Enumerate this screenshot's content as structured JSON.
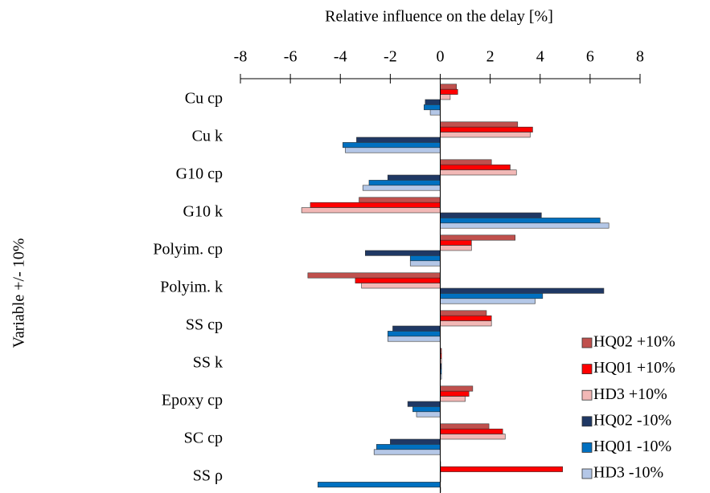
{
  "chart_data": {
    "type": "bar",
    "orientation": "horizontal",
    "x_label": "Relative influence on the delay [%]",
    "y_label": "Variable +/- 10%",
    "categories": [
      "Cu cp",
      "Cu k",
      "G10 cp",
      "G10 k",
      "Polyim. cp",
      "Polyim. k",
      "SS cp",
      "SS k",
      "Epoxy cp",
      "SC cp",
      "SS ρ"
    ],
    "series": [
      {
        "name": "HQ02 +10%",
        "color": "#c0504d",
        "values": [
          0.65,
          3.1,
          2.05,
          -3.25,
          3.0,
          -5.3,
          1.85,
          0.05,
          1.3,
          1.95,
          0
        ]
      },
      {
        "name": "HQ01 +10%",
        "color": "#ff0000",
        "values": [
          0.7,
          3.7,
          2.8,
          -5.2,
          1.25,
          -3.4,
          2.05,
          0.05,
          1.15,
          2.5,
          4.9
        ]
      },
      {
        "name": "HD3 +10%",
        "color": "#f2b8b6",
        "values": [
          0.4,
          3.6,
          3.05,
          -5.55,
          1.25,
          -3.15,
          2.05,
          0.05,
          1.0,
          2.6,
          0
        ]
      },
      {
        "name": "HQ02 -10%",
        "color": "#1f3864",
        "values": [
          -0.6,
          -3.35,
          -2.1,
          4.05,
          -3.0,
          6.55,
          -1.9,
          0.05,
          -1.3,
          -2.0,
          0
        ]
      },
      {
        "name": "HQ01 -10%",
        "color": "#0070c0",
        "values": [
          -0.65,
          -3.9,
          -2.85,
          6.4,
          -1.2,
          4.1,
          -2.1,
          0.05,
          -1.1,
          -2.55,
          -4.9
        ]
      },
      {
        "name": "HD3 -10%",
        "color": "#b4c7e7",
        "values": [
          -0.4,
          -3.8,
          -3.1,
          6.75,
          -1.2,
          3.8,
          -2.1,
          0.05,
          -0.95,
          -2.65,
          0
        ]
      }
    ],
    "xlim": [
      -8,
      8
    ],
    "xticks": [
      -8,
      -6,
      -4,
      -2,
      0,
      2,
      4,
      6,
      8
    ],
    "legend": "lower right"
  }
}
